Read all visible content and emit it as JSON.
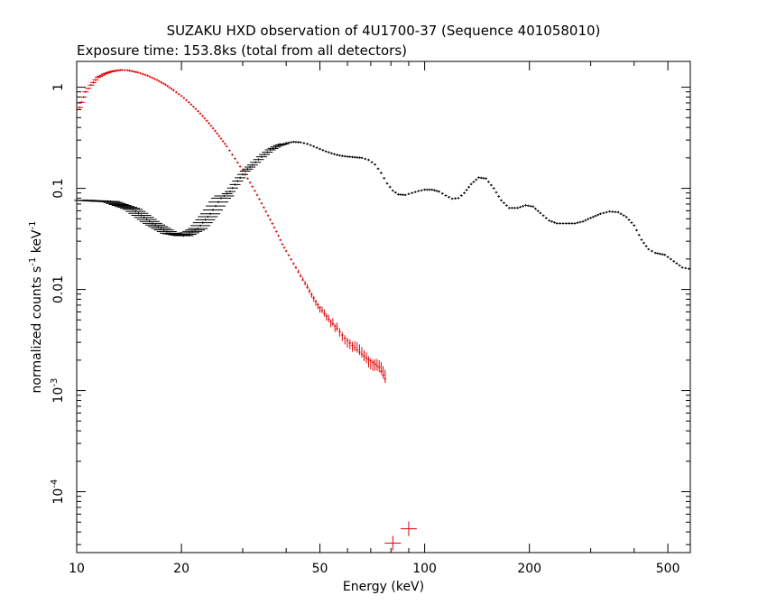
{
  "chart_data": {
    "type": "scatter",
    "title": "SUZAKU HXD observation of 4U1700-37 (Sequence 401058010)",
    "subtitle": "Exposure time: 153.8ks (total from all detectors)",
    "xlabel": "Energy (keV)",
    "ylabel": "normalized counts s^-1 keV^-1",
    "x_scale": "log",
    "y_scale": "log",
    "xlim": [
      10,
      580
    ],
    "ylim": [
      2.5e-05,
      1.8
    ],
    "grid": false,
    "x_ticks": [
      {
        "value": 10,
        "label": "10"
      },
      {
        "value": 20,
        "label": "20"
      },
      {
        "value": 50,
        "label": "50"
      },
      {
        "value": 100,
        "label": "100"
      },
      {
        "value": 200,
        "label": "200"
      },
      {
        "value": 500,
        "label": "500"
      }
    ],
    "y_ticks": [
      {
        "value": 1,
        "label": "1"
      },
      {
        "value": 0.1,
        "label": "0.1"
      },
      {
        "value": 0.01,
        "label": "0.01"
      },
      {
        "value": 0.001,
        "label": "10^-3"
      },
      {
        "value": 0.0001,
        "label": "10^-4"
      }
    ],
    "series": [
      {
        "color": "#e00000",
        "style": "crosses",
        "points": [
          [
            10.2,
            0.63
          ],
          [
            10.6,
            0.9
          ],
          [
            11.0,
            1.05
          ],
          [
            11.5,
            1.25
          ],
          [
            12.0,
            1.35
          ],
          [
            12.5,
            1.42
          ],
          [
            13.0,
            1.46
          ],
          [
            13.5,
            1.48
          ],
          [
            14.0,
            1.47
          ],
          [
            15.0,
            1.4
          ],
          [
            16.0,
            1.3
          ],
          [
            17.0,
            1.18
          ],
          [
            18.0,
            1.06
          ],
          [
            19.0,
            0.93
          ],
          [
            20.0,
            0.82
          ],
          [
            21.0,
            0.71
          ],
          [
            22.0,
            0.61
          ],
          [
            23.0,
            0.52
          ],
          [
            24.0,
            0.44
          ],
          [
            25.0,
            0.37
          ],
          [
            26.0,
            0.31
          ],
          [
            27.0,
            0.26
          ],
          [
            28.0,
            0.215
          ],
          [
            29.0,
            0.18
          ],
          [
            30.0,
            0.15
          ],
          [
            31.0,
            0.125
          ],
          [
            32.0,
            0.104
          ],
          [
            33.0,
            0.086
          ],
          [
            34.0,
            0.071
          ],
          [
            35.0,
            0.059
          ],
          [
            36.0,
            0.049
          ],
          [
            37.0,
            0.041
          ],
          [
            38.0,
            0.034
          ],
          [
            39.0,
            0.028
          ],
          [
            40.0,
            0.024
          ],
          [
            42.0,
            0.018
          ],
          [
            44.0,
            0.0135
          ],
          [
            46.0,
            0.0105
          ],
          [
            48.0,
            0.0082
          ],
          [
            50.0,
            0.0066
          ],
          [
            53.0,
            0.0051
          ],
          [
            56.0,
            0.0041
          ],
          [
            59.0,
            0.0033
          ],
          [
            62.0,
            0.0028
          ],
          [
            65.0,
            0.0024
          ],
          [
            68.0,
            0.0021
          ],
          [
            71.0,
            0.0019
          ],
          [
            74.0,
            0.0017
          ],
          [
            77.0,
            0.0013
          ]
        ]
      },
      {
        "color": "#e00000",
        "style": "crosses-large",
        "points": [
          [
            81.0,
            3.1e-05
          ],
          [
            90.0,
            4.3e-05
          ]
        ]
      },
      {
        "color": "#000000",
        "style": "crosses",
        "points": [
          [
            10.5,
            0.076
          ],
          [
            12.5,
            0.074
          ],
          [
            14.5,
            0.062
          ],
          [
            16.5,
            0.045
          ],
          [
            18.5,
            0.036
          ],
          [
            20.3,
            0.034
          ],
          [
            22.3,
            0.04
          ],
          [
            24.2,
            0.056
          ],
          [
            26.0,
            0.08
          ],
          [
            27.6,
            0.093
          ],
          [
            29.0,
            0.118
          ],
          [
            30.5,
            0.148
          ],
          [
            32.0,
            0.17
          ],
          [
            34.0,
            0.205
          ],
          [
            36.0,
            0.24
          ],
          [
            38.0,
            0.265
          ],
          [
            40.0,
            0.28
          ],
          [
            42.0,
            0.288
          ],
          [
            44.0,
            0.285
          ],
          [
            46.0,
            0.275
          ],
          [
            48.0,
            0.26
          ],
          [
            50.0,
            0.245
          ],
          [
            52.0,
            0.232
          ],
          [
            54.0,
            0.222
          ],
          [
            56.0,
            0.214
          ],
          [
            58.0,
            0.209
          ],
          [
            60.0,
            0.206
          ],
          [
            63.0,
            0.203
          ],
          [
            66.0,
            0.2
          ],
          [
            69.0,
            0.191
          ],
          [
            72.0,
            0.172
          ],
          [
            75.0,
            0.142
          ],
          [
            78.0,
            0.112
          ],
          [
            81.0,
            0.095
          ],
          [
            84.0,
            0.087
          ],
          [
            88.0,
            0.086
          ],
          [
            92.0,
            0.09
          ],
          [
            96.0,
            0.094
          ],
          [
            100.0,
            0.097
          ],
          [
            105.0,
            0.097
          ],
          [
            110.0,
            0.093
          ],
          [
            115.0,
            0.085
          ],
          [
            120.0,
            0.079
          ],
          [
            125.0,
            0.08
          ],
          [
            130.0,
            0.09
          ],
          [
            136.0,
            0.11
          ],
          [
            143.0,
            0.128
          ],
          [
            150.0,
            0.125
          ],
          [
            158.0,
            0.1
          ],
          [
            166.0,
            0.076
          ],
          [
            175.0,
            0.064
          ],
          [
            185.0,
            0.064
          ],
          [
            195.0,
            0.068
          ],
          [
            205.0,
            0.066
          ],
          [
            215.0,
            0.057
          ],
          [
            228.0,
            0.048
          ],
          [
            240.0,
            0.045
          ],
          [
            255.0,
            0.045
          ],
          [
            270.0,
            0.045
          ],
          [
            285.0,
            0.047
          ],
          [
            300.0,
            0.051
          ],
          [
            320.0,
            0.056
          ],
          [
            340.0,
            0.059
          ],
          [
            360.0,
            0.058
          ],
          [
            380.0,
            0.052
          ],
          [
            400.0,
            0.043
          ],
          [
            420.0,
            0.031
          ],
          [
            440.0,
            0.025
          ],
          [
            460.0,
            0.023
          ],
          [
            490.0,
            0.022
          ],
          [
            520.0,
            0.019
          ],
          [
            550.0,
            0.0165
          ],
          [
            575.0,
            0.016
          ]
        ]
      }
    ]
  }
}
